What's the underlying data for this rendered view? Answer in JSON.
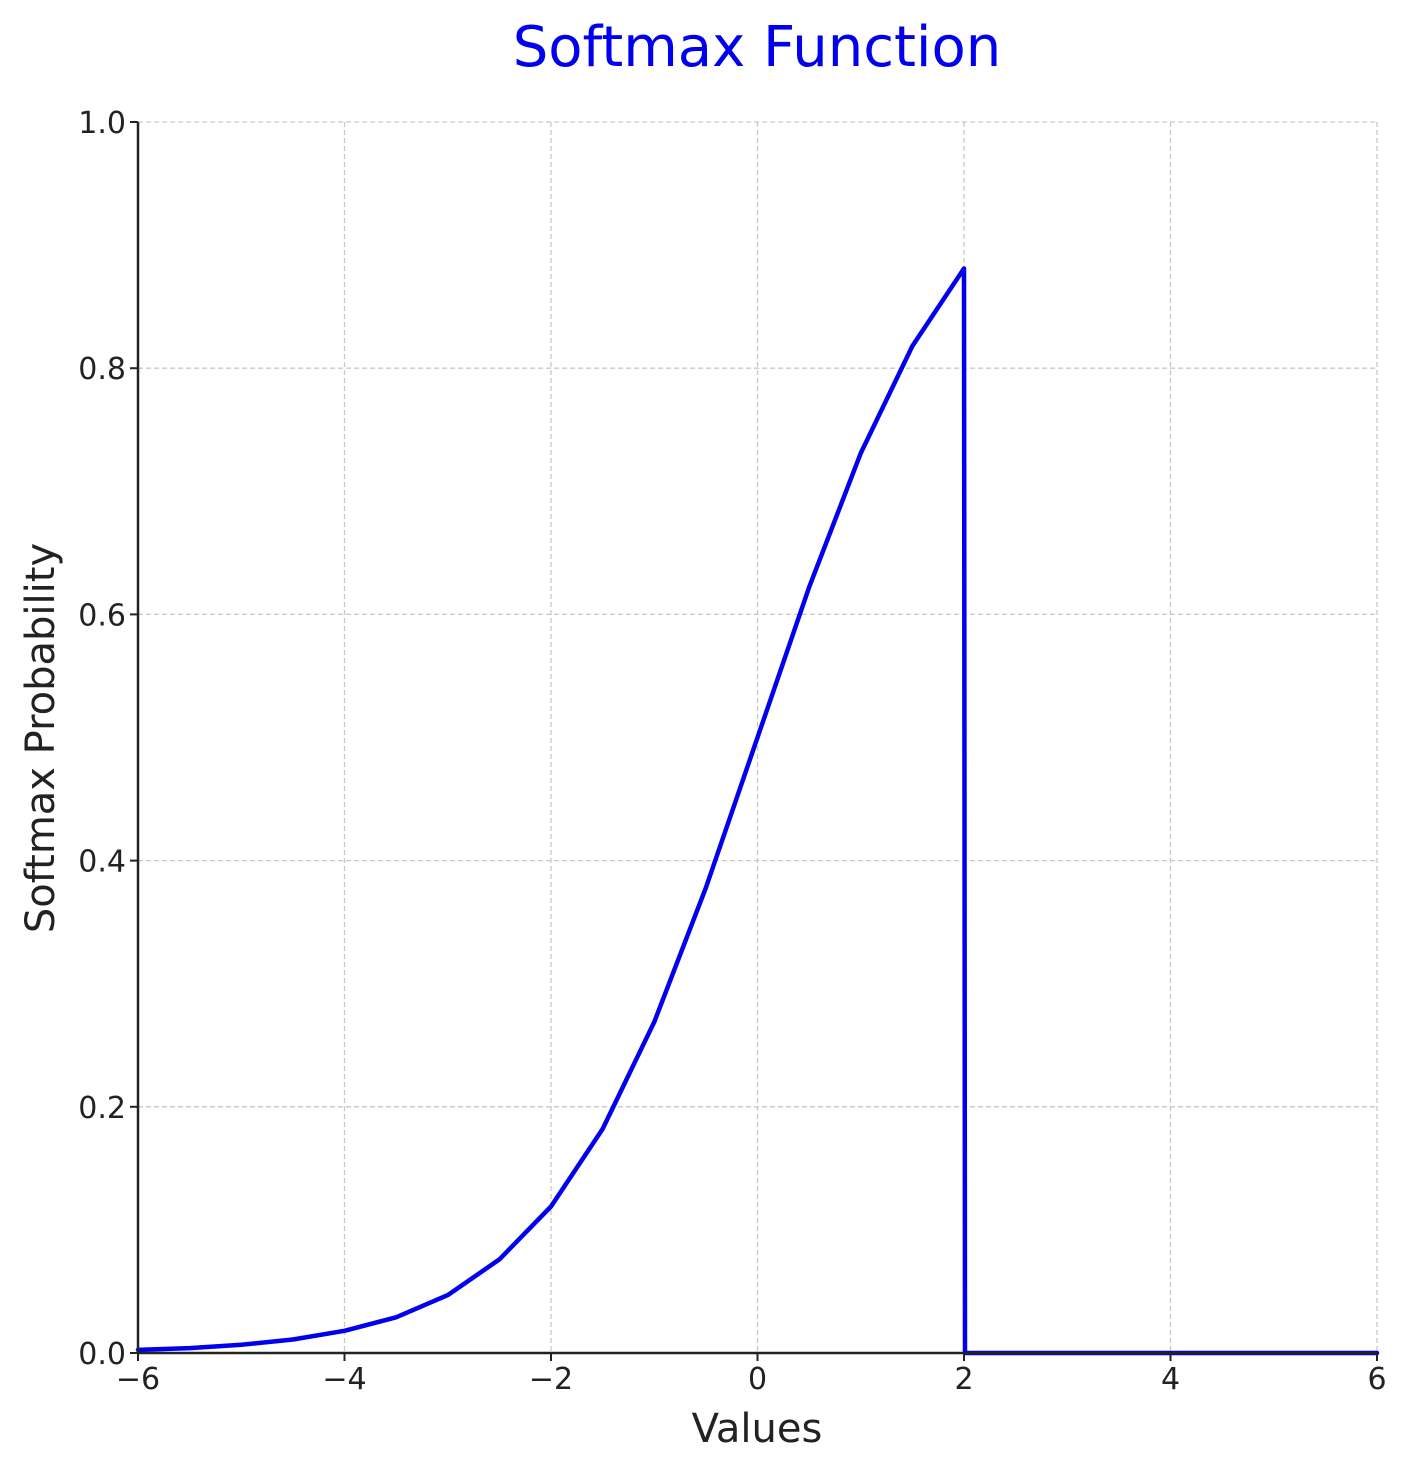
{
  "chart_data": {
    "type": "line",
    "title": "Softmax Function",
    "xlabel": "Values",
    "ylabel": "Softmax Probability",
    "xlim": [
      -6,
      6
    ],
    "ylim": [
      0,
      1
    ],
    "x_ticks": [
      -6,
      -4,
      -2,
      0,
      2,
      4,
      6
    ],
    "x_tick_labels": [
      "−6",
      "−4",
      "−2",
      "0",
      "2",
      "4",
      "6"
    ],
    "y_ticks": [
      0,
      0.2,
      0.4,
      0.6,
      0.8,
      1
    ],
    "y_tick_labels": [
      "0.0",
      "0.2",
      "0.4",
      "0.6",
      "0.8",
      "1.0"
    ],
    "grid": true,
    "series": [
      {
        "color": "#0000ee",
        "x": [
          -6,
          -5.5,
          -5,
          -4.5,
          -4,
          -3.5,
          -3,
          -2.5,
          -2,
          -1.5,
          -1,
          -0.5,
          0,
          0.5,
          1,
          1.5,
          2,
          2.01,
          2.5,
          3,
          4,
          5,
          6
        ],
        "y": [
          0.0025,
          0.004,
          0.0067,
          0.011,
          0.018,
          0.029,
          0.047,
          0.076,
          0.119,
          0.182,
          0.269,
          0.378,
          0.5,
          0.622,
          0.731,
          0.818,
          0.881,
          0,
          0,
          0,
          0,
          0,
          0
        ]
      }
    ]
  },
  "colors": {
    "title": "#0000ee",
    "axis": "#222222",
    "grid": "#c8c8c8"
  }
}
